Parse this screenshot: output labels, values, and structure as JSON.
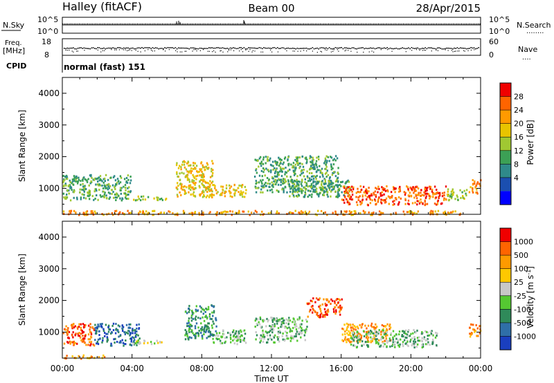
{
  "header": {
    "station": "Halley (fitACF)",
    "beam": "Beam 00",
    "date": "28/Apr/2015"
  },
  "noise_panel": {
    "left_label": "N.Sky",
    "right_label": "N.Search",
    "right_legend": "........",
    "left_ticks": [
      "10^5",
      "10^0"
    ],
    "right_ticks": [
      "10^5",
      "10^0"
    ]
  },
  "freq_panel": {
    "left_label_line1": "Freq.",
    "left_label_line2": "[MHz]",
    "left_ticks": [
      "18",
      "8"
    ],
    "right_label": "Nave",
    "right_legend": "....",
    "right_ticks": [
      "60",
      "0"
    ]
  },
  "cpid": {
    "label": "CPID",
    "value": "normal (fast) 151"
  },
  "x_axis": {
    "label": "Time UT",
    "ticks": [
      "00:00",
      "04:00",
      "08:00",
      "12:00",
      "16:00",
      "20:00",
      "00:00"
    ]
  },
  "chart_data": [
    {
      "type": "heatmap",
      "title": "",
      "xlabel": "Time UT",
      "ylabel": "Slant Range [km]",
      "xlim": [
        0,
        24
      ],
      "ylim": [
        180,
        4500
      ],
      "y_ticks": [
        "1000",
        "2000",
        "3000",
        "4000"
      ],
      "colorbar": {
        "label": "Power [dB]",
        "ticks": [
          "28",
          "24",
          "20",
          "16",
          "12",
          "8",
          "4"
        ],
        "colors": [
          "#0000ff",
          "#1b4fb0",
          "#2f8a8a",
          "#3ca055",
          "#a0c832",
          "#e8c400",
          "#ff9a00",
          "#ff6400",
          "#f00000"
        ]
      },
      "regions": [
        {
          "t": [
            0.0,
            3.9
          ],
          "r": [
            650,
            1450
          ],
          "level": 3
        },
        {
          "t": [
            4.0,
            6.0
          ],
          "r": [
            650,
            780
          ],
          "level": 4
        },
        {
          "t": [
            6.5,
            8.6
          ],
          "r": [
            750,
            1900
          ],
          "level": 5
        },
        {
          "t": [
            8.0,
            10.5
          ],
          "r": [
            750,
            1150
          ],
          "level": 5
        },
        {
          "t": [
            11.0,
            15.8
          ],
          "r": [
            900,
            2050
          ],
          "level": 3
        },
        {
          "t": [
            13.0,
            16.5
          ],
          "r": [
            750,
            1300
          ],
          "level": 3
        },
        {
          "t": [
            16.0,
            22.0
          ],
          "r": [
            500,
            1100
          ],
          "level": 7
        },
        {
          "t": [
            22.0,
            23.3
          ],
          "r": [
            650,
            1000
          ],
          "level": 4
        },
        {
          "t": [
            23.3,
            24.0
          ],
          "r": [
            850,
            1300
          ],
          "level": 6
        },
        {
          "t": [
            0.0,
            23.0
          ],
          "r": [
            190,
            320
          ],
          "level": 6
        }
      ]
    },
    {
      "type": "heatmap",
      "title": "",
      "xlabel": "Time UT",
      "ylabel": "Slant Range [km]",
      "xlim": [
        0,
        24
      ],
      "ylim": [
        180,
        4500
      ],
      "y_ticks": [
        "1000",
        "2000",
        "3000",
        "4000"
      ],
      "colorbar": {
        "label": "Velocity [m s^-1]",
        "ticks": [
          "1000",
          "500",
          "100",
          "25",
          "-25",
          "-100",
          "-500",
          "-1000"
        ],
        "colors": [
          "#1a3fbf",
          "#2f6fa8",
          "#2f8a5a",
          "#55c832",
          "#c8c8c8",
          "#ffc800",
          "#ff9a00",
          "#ff6400",
          "#f00000"
        ]
      },
      "regions": [
        {
          "t": [
            0.0,
            1.8
          ],
          "r": [
            600,
            1300
          ],
          "level": 7
        },
        {
          "t": [
            1.8,
            4.4
          ],
          "r": [
            600,
            1300
          ],
          "level": 1
        },
        {
          "t": [
            4.0,
            6.0
          ],
          "r": [
            650,
            780
          ],
          "level": 4
        },
        {
          "t": [
            7.0,
            8.8
          ],
          "r": [
            800,
            1900
          ],
          "level": 2
        },
        {
          "t": [
            8.5,
            10.5
          ],
          "r": [
            650,
            1100
          ],
          "level": 3
        },
        {
          "t": [
            11.0,
            14.0
          ],
          "r": [
            700,
            1500
          ],
          "level": 3
        },
        {
          "t": [
            14.0,
            16.0
          ],
          "r": [
            1500,
            2100
          ],
          "level": 7
        },
        {
          "t": [
            16.0,
            18.8
          ],
          "r": [
            700,
            1300
          ],
          "level": 6
        },
        {
          "t": [
            16.5,
            21.5
          ],
          "r": [
            550,
            1100
          ],
          "level": 3
        },
        {
          "t": [
            23.3,
            24.0
          ],
          "r": [
            850,
            1300
          ],
          "level": 6
        },
        {
          "t": [
            0.0,
            2.5
          ],
          "r": [
            190,
            300
          ],
          "level": 6
        }
      ]
    }
  ]
}
